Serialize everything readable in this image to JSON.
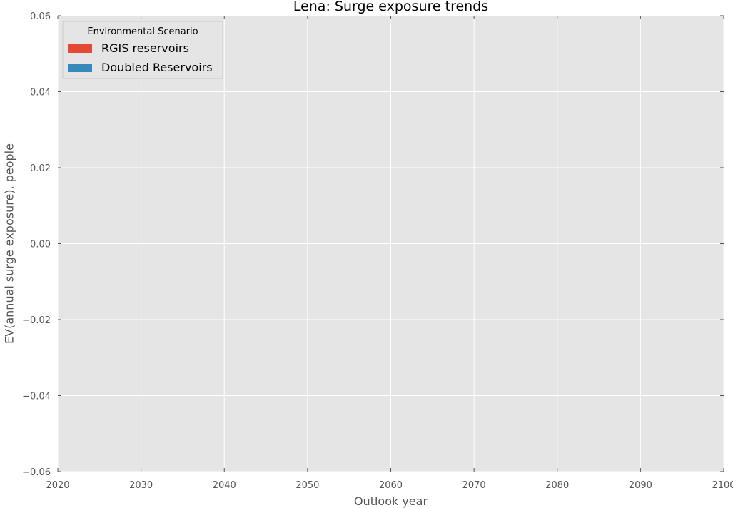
{
  "chart_data": {
    "type": "area",
    "title": "Lena: Surge exposure trends",
    "xlabel": "Outlook year",
    "ylabel": "EV(annual surge exposure), people",
    "xlim": [
      2020,
      2100
    ],
    "ylim": [
      -0.06,
      0.06
    ],
    "x_ticks": [
      2020,
      2030,
      2040,
      2050,
      2060,
      2070,
      2080,
      2090,
      2100
    ],
    "y_ticks": [
      -0.06,
      -0.04,
      -0.02,
      0.0,
      0.02,
      0.04,
      0.06
    ],
    "y_tick_labels": [
      "−0.06",
      "−0.04",
      "−0.02",
      "0.00",
      "0.02",
      "0.04",
      "0.06"
    ],
    "grid": true,
    "legend": {
      "title": "Environmental Scenario",
      "placement": "top-left",
      "entries": [
        {
          "label": "RGIS reservoirs",
          "color": "#e24a33"
        },
        {
          "label": "Doubled Reservoirs",
          "color": "#348abd"
        }
      ]
    },
    "series": [
      {
        "name": "RGIS reservoirs",
        "color": "#e24a33",
        "x": [],
        "values": []
      },
      {
        "name": "Doubled Reservoirs",
        "color": "#348abd",
        "x": [],
        "values": []
      }
    ],
    "colors": {
      "plot_background": "#e5e5e5",
      "grid": "#ffffff"
    }
  }
}
